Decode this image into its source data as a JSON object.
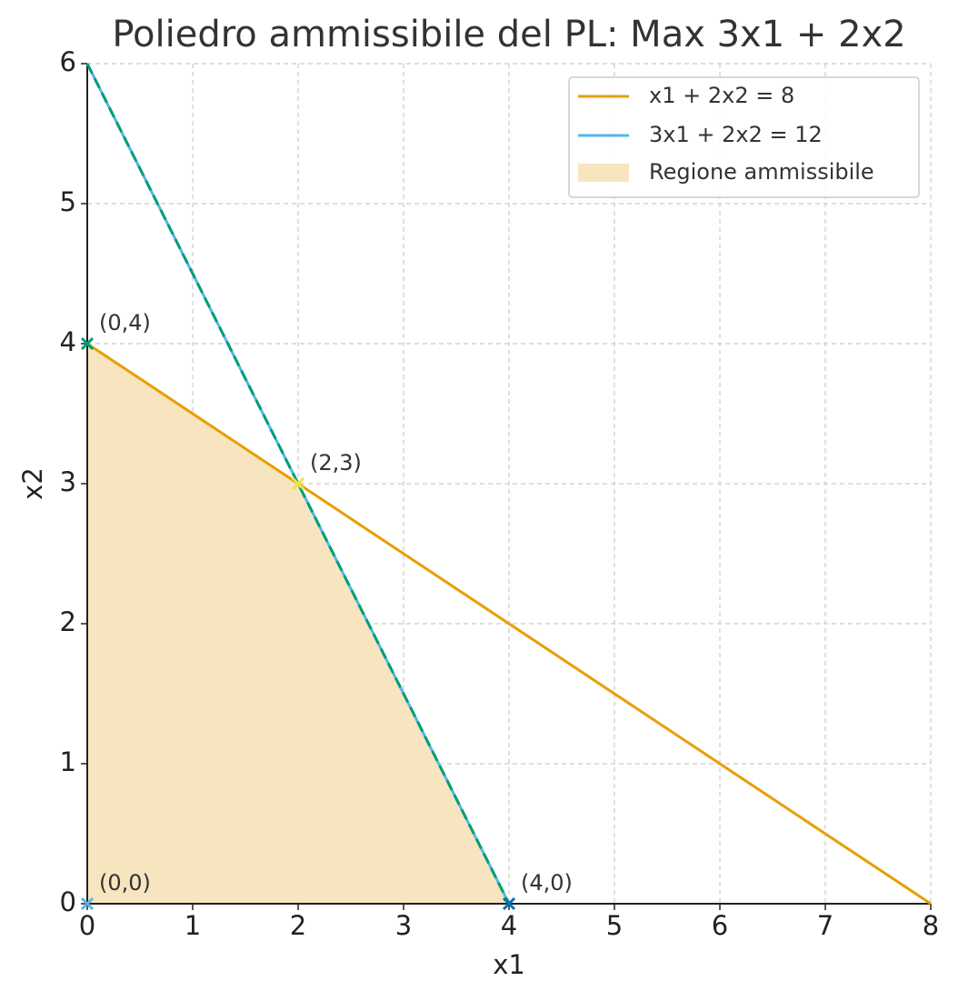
{
  "chart_data": {
    "type": "line",
    "title": "Poliedro ammissibile del PL: Max 3x1 + 2x2",
    "xlabel": "x1",
    "ylabel": "x2",
    "xlim": [
      0,
      8
    ],
    "ylim": [
      0,
      6
    ],
    "xticks": [
      0,
      1,
      2,
      3,
      4,
      5,
      6,
      7,
      8
    ],
    "yticks": [
      0,
      1,
      2,
      3,
      4,
      5,
      6
    ],
    "grid": true,
    "legend": "upper right",
    "series": [
      {
        "name": "x1 + 2x2 = 8",
        "color": "#e69f00",
        "x": [
          0,
          8
        ],
        "values": [
          4,
          0
        ]
      },
      {
        "name": "3x1 + 2x2 = 12",
        "color": "#56b4e9",
        "x": [
          0,
          4
        ],
        "values": [
          6,
          0
        ]
      },
      {
        "color": "#009e73",
        "dashed": true,
        "x": [
          0,
          4
        ],
        "values": [
          6,
          0
        ]
      }
    ],
    "area": {
      "name": "Regione ammissibile",
      "color": "#f7e5c0",
      "x": [
        0,
        0,
        2,
        4
      ],
      "values": [
        0,
        4,
        3,
        0
      ]
    },
    "points": [
      {
        "label": "(0,0)",
        "x": 0,
        "y": 0,
        "color": "#56b4e9"
      },
      {
        "label": "(0,4)",
        "x": 0,
        "y": 4,
        "color": "#009e73"
      },
      {
        "label": "(2,3)",
        "x": 2,
        "y": 3,
        "color": "#f0e442"
      },
      {
        "label": "(4,0)",
        "x": 4,
        "y": 0,
        "color": "#0072b2"
      }
    ]
  }
}
